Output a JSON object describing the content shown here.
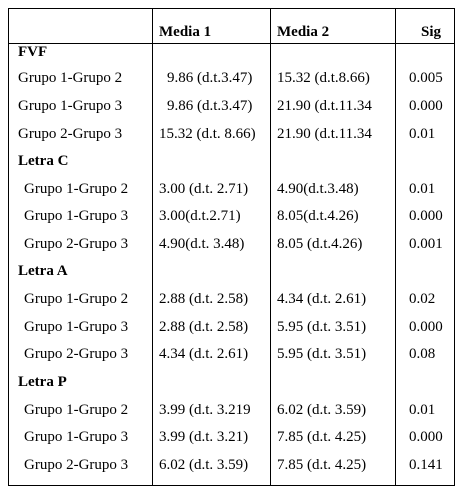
{
  "headers": {
    "media1": "Media 1",
    "media2": "Media 2",
    "sig": "Sig"
  },
  "sections": [
    {
      "title": "FVF",
      "rows": [
        {
          "group": "Grupo 1-Grupo 2",
          "m1": "9.86 (d.t.3.47)",
          "m2": "15.32 (d.t.8.66)",
          "sig": "0.005"
        },
        {
          "group": "Grupo 1-Grupo 3",
          "m1": "9.86 (d.t.3.47)",
          "m2": "21.90 (d.t.11.34",
          "sig": "0.000"
        },
        {
          "group": "Grupo 2-Grupo 3",
          "m1": "15.32 (d.t. 8.66)",
          "m2": "21.90 (d.t.11.34",
          "sig": "0.01"
        }
      ]
    },
    {
      "title": "Letra C",
      "rows": [
        {
          "group": "Grupo 1-Grupo 2",
          "m1": "3.00 (d.t. 2.71)",
          "m2": "4.90(d.t.3.48)",
          "sig": "0.01"
        },
        {
          "group": "Grupo 1-Grupo 3",
          "m1": "3.00(d.t.2.71)",
          "m2": "8.05(d.t.4.26)",
          "sig": "0.000"
        },
        {
          "group": "Grupo 2-Grupo 3",
          "m1": "4.90(d.t. 3.48)",
          "m2": "8.05 (d.t.4.26)",
          "sig": "0.001"
        }
      ]
    },
    {
      "title": "Letra A",
      "rows": [
        {
          "group": "Grupo 1-Grupo 2",
          "m1": "2.88 (d.t. 2.58)",
          "m2": "4.34 (d.t. 2.61)",
          "sig": "0.02"
        },
        {
          "group": "Grupo 1-Grupo 3",
          "m1": "2.88 (d.t. 2.58)",
          "m2": "5.95 (d.t. 3.51)",
          "sig": "0.000"
        },
        {
          "group": "Grupo 2-Grupo 3",
          "m1": "4.34 (d.t. 2.61)",
          "m2": "5.95 (d.t. 3.51)",
          "sig": "0.08"
        }
      ]
    },
    {
      "title": "Letra P",
      "rows": [
        {
          "group": "Grupo 1-Grupo 2",
          "m1": "3.99 (d.t. 3.219",
          "m2": "6.02 (d.t. 3.59)",
          "sig": "0.01"
        },
        {
          "group": "Grupo 1-Grupo 3",
          "m1": "3.99 (d.t. 3.21)",
          "m2": "7.85 (d.t. 4.25)",
          "sig": "0.000"
        },
        {
          "group": "Grupo 2-Grupo 3",
          "m1": "6.02 (d.t. 3.59)",
          "m2": "7.85 (d.t. 4.25)",
          "sig": "0.141"
        }
      ]
    }
  ]
}
